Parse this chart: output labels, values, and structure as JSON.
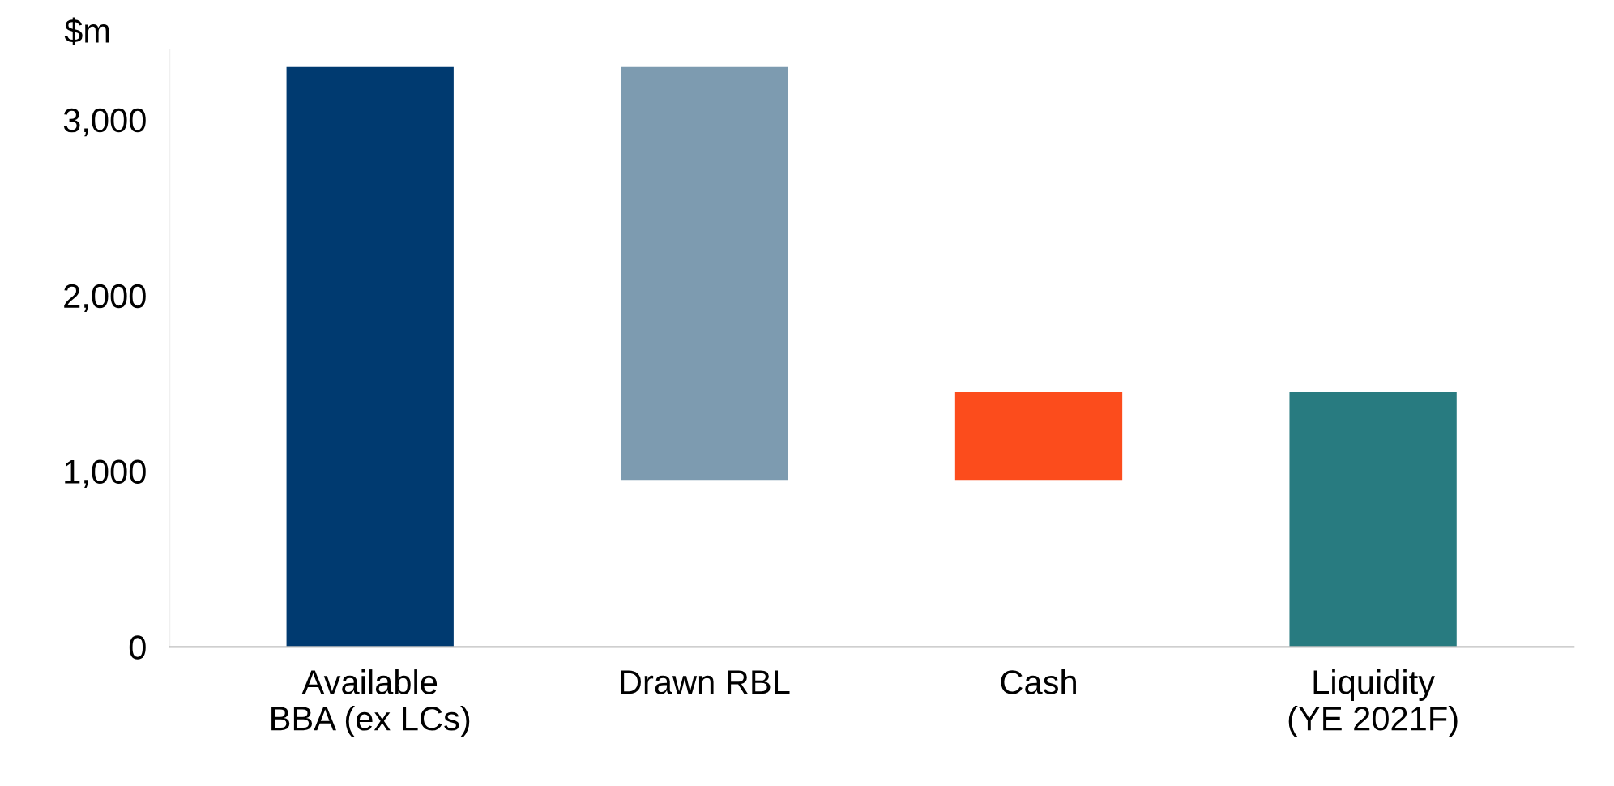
{
  "chart_data": {
    "type": "bar",
    "ylabel": "$m",
    "categories": [
      "Available\nBBA (ex LCs)",
      "Drawn RBL",
      "Cash",
      "Liquidity\n(YE 2021F)"
    ],
    "values": [
      3300,
      2350,
      500,
      1450
    ],
    "base": [
      0,
      950,
      950,
      0
    ],
    "colors": [
      "#003a70",
      "#7d9bb0",
      "#fc4c1c",
      "#287b80"
    ],
    "ylim": [
      0,
      3400
    ],
    "yticks": [
      {
        "value": 0,
        "label": "0"
      },
      {
        "value": 1000,
        "label": "1,000"
      },
      {
        "value": 2000,
        "label": "2,000"
      },
      {
        "value": 3000,
        "label": "3,000"
      }
    ],
    "grid": false,
    "legend": false
  }
}
